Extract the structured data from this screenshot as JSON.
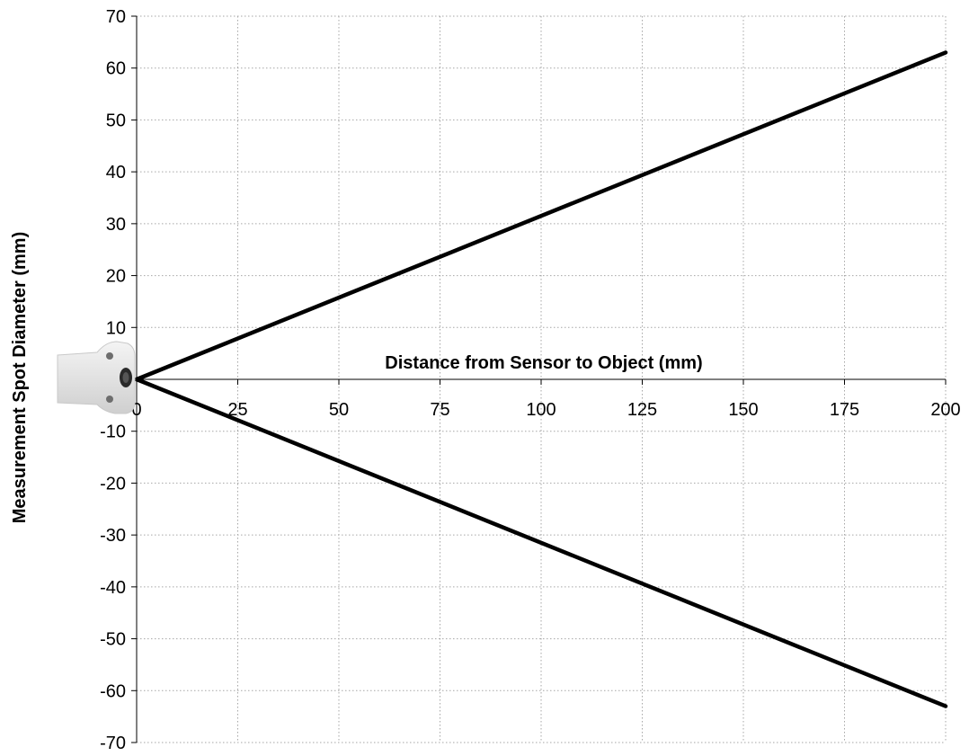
{
  "chart_data": {
    "type": "line",
    "xlabel": "Distance from Sensor to Object (mm)",
    "ylabel": "Measurement Spot Diameter (mm)",
    "xlim": [
      0,
      200
    ],
    "ylim": [
      -70,
      70
    ],
    "x_ticks": [
      0,
      25,
      50,
      75,
      100,
      125,
      150,
      175,
      200
    ],
    "y_ticks": [
      70,
      60,
      50,
      40,
      30,
      20,
      10,
      0,
      -10,
      -20,
      -30,
      -40,
      -50,
      -60,
      -70
    ],
    "y_tick_labels": [
      "70",
      "60",
      "50",
      "40",
      "30",
      "20",
      "10",
      "",
      "-10",
      "-20",
      "-30",
      "-40",
      "-50",
      "-60",
      "-70"
    ],
    "grid": true,
    "series": [
      {
        "x": [
          0,
          200
        ],
        "y": [
          0,
          63
        ]
      },
      {
        "x": [
          0,
          200
        ],
        "y": [
          0,
          -63
        ]
      }
    ],
    "colors": {
      "line": "#000000",
      "grid": "#a6a6a6"
    },
    "decoration": {
      "sensor_icon": "sensor-device-icon"
    }
  }
}
